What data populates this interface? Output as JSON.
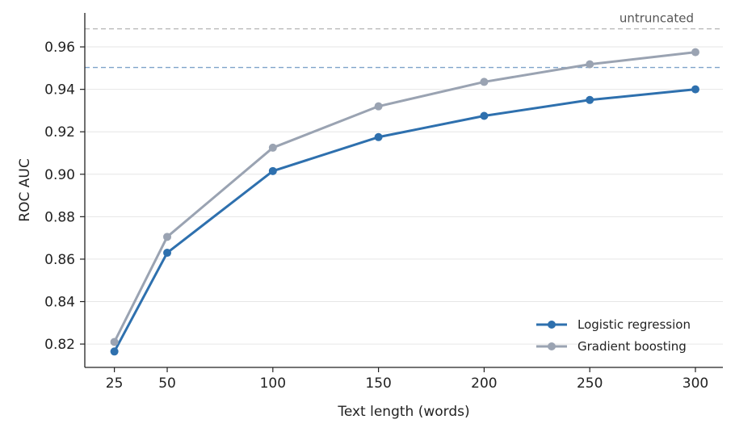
{
  "chart_data": {
    "type": "line",
    "xlabel": "Text length (words)",
    "ylabel": "ROC AUC",
    "x": [
      25,
      50,
      100,
      150,
      200,
      250,
      300
    ],
    "xticks": [
      "25",
      "50",
      "100",
      "150",
      "200",
      "250",
      "300"
    ],
    "xlim": [
      11,
      313
    ],
    "ylim": [
      0.809,
      0.976
    ],
    "yticks": [
      "0.82",
      "0.84",
      "0.86",
      "0.88",
      "0.90",
      "0.92",
      "0.94",
      "0.96"
    ],
    "grid": "horizontal",
    "legend_position": "bottom-right",
    "series": [
      {
        "name": "Logistic regression",
        "color": "#2e70ae",
        "values": [
          0.8165,
          0.863,
          0.9015,
          0.9175,
          0.9275,
          0.935,
          0.94
        ]
      },
      {
        "name": "Gradient boosting",
        "color": "#9aa3b2",
        "values": [
          0.821,
          0.8705,
          0.9125,
          0.932,
          0.9435,
          0.9518,
          0.9575
        ]
      }
    ],
    "reference_lines": [
      {
        "label": "untruncated",
        "value": 0.9685,
        "color": "#bbbbbb"
      },
      {
        "label": "",
        "value": 0.9503,
        "color": "#7fa3c9"
      }
    ]
  }
}
